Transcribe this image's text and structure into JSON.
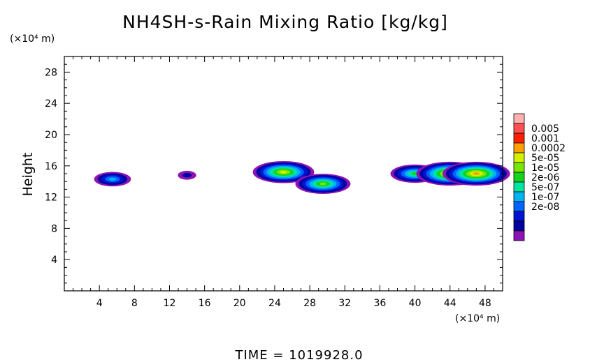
{
  "chart_data": {
    "type": "heatmap",
    "title": "NH4SH-s-Rain Mixing Ratio [kg/kg]",
    "ylabel": "Height",
    "xlabel": "",
    "x_unit": "(×10⁴ m)",
    "y_unit": "(×10⁴ m)",
    "xlim": [
      0,
      50
    ],
    "ylim": [
      0,
      30
    ],
    "x_ticks": [
      4,
      8,
      12,
      16,
      20,
      24,
      28,
      32,
      36,
      40,
      44,
      48
    ],
    "y_ticks": [
      4,
      8,
      12,
      16,
      20,
      24,
      28
    ],
    "time_label": "TIME = 1019928.0",
    "colorbar": {
      "labels": [
        "0.005",
        "0.001",
        "0.0002",
        "5e-05",
        "1e-05",
        "2e-06",
        "5e-07",
        "1e-07",
        "2e-08"
      ],
      "colors": [
        "#ffb0b0",
        "#ff5050",
        "#ff1e00",
        "#ffa000",
        "#d2f000",
        "#78e600",
        "#14d21e",
        "#00e6a0",
        "#00b4f0",
        "#0064ff",
        "#0014d2",
        "#0000a0",
        "#8c14b4"
      ]
    },
    "features": [
      {
        "x": 5.5,
        "y": 14.3,
        "level": 4
      },
      {
        "x": 14,
        "y": 14.8,
        "level": 1
      },
      {
        "x": 25,
        "y": 15.2,
        "level": 8
      },
      {
        "x": 29.5,
        "y": 13.7,
        "level": 7
      },
      {
        "x": 40,
        "y": 15.0,
        "level": 6
      },
      {
        "x": 44,
        "y": 15.0,
        "level": 9
      },
      {
        "x": 47,
        "y": 15.0,
        "level": 9
      }
    ]
  }
}
